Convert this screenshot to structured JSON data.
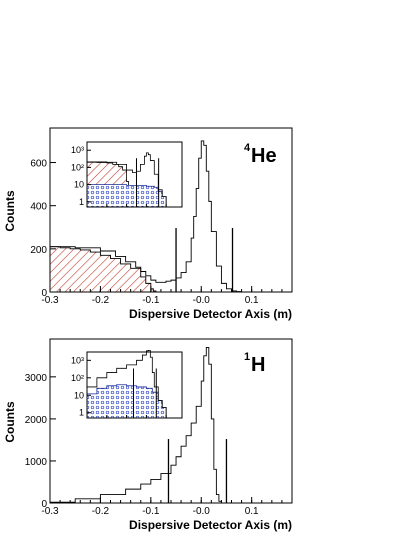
{
  "chart_data": [
    {
      "type": "histogram",
      "xlabel": "Dispersive Detector Axis (m)",
      "ylabel": "Counts",
      "nucleus_mass": "4",
      "nucleus_symbol": "He",
      "xlim": [
        -0.3,
        0.18
      ],
      "ylim": [
        0,
        760
      ],
      "xticks": [
        -0.3,
        -0.2,
        -0.1,
        -0.0,
        0.1
      ],
      "xtick_labels": [
        "-0.3",
        "-0.2",
        "-0.1",
        "-0.0",
        "0.1"
      ],
      "yticks": [
        0,
        200,
        400,
        600
      ],
      "cut_lines": [
        -0.05,
        0.062
      ],
      "series": [
        {
          "fill": "red-hatch",
          "x": [
            -0.3,
            -0.28,
            -0.26,
            -0.24,
            -0.22,
            -0.2,
            -0.18,
            -0.16,
            -0.14,
            -0.12,
            -0.11,
            -0.1,
            -0.095,
            -0.09
          ],
          "y": [
            210,
            205,
            200,
            195,
            185,
            170,
            155,
            130,
            110,
            70,
            40,
            15,
            5,
            0
          ]
        },
        {
          "fill": "none",
          "x": [
            -0.3,
            -0.25,
            -0.2,
            -0.17,
            -0.15,
            -0.13,
            -0.12,
            -0.11,
            -0.1,
            -0.09,
            -0.08,
            -0.07,
            -0.06,
            -0.05,
            -0.04,
            -0.03,
            -0.02,
            -0.015,
            -0.01,
            -0.005,
            0.0,
            0.005,
            0.01,
            0.015,
            0.02,
            0.03,
            0.04,
            0.05,
            0.06,
            0.07,
            0.08
          ],
          "y": [
            210,
            205,
            190,
            165,
            140,
            115,
            95,
            75,
            55,
            45,
            45,
            50,
            55,
            65,
            90,
            140,
            250,
            350,
            480,
            620,
            700,
            680,
            560,
            420,
            280,
            120,
            40,
            15,
            5,
            2,
            0
          ]
        }
      ],
      "inset": {
        "yscale": "log",
        "yticks": [
          1,
          10,
          100,
          1000
        ],
        "ytick_labels": [
          "1",
          "10",
          "10²",
          "10³"
        ],
        "series": [
          {
            "fill": "red-hatch",
            "x": [
              -0.3,
              -0.25,
              -0.2,
              -0.17,
              -0.14,
              -0.12,
              -0.1,
              -0.09,
              -0.08
            ],
            "y": [
              200,
              195,
              180,
              150,
              110,
              70,
              15,
              3,
              1
            ]
          },
          {
            "fill": "blue-hatch",
            "x": [
              -0.3,
              -0.2,
              -0.1,
              -0.05,
              0.0,
              0.04,
              0.06,
              0.08,
              0.1
            ],
            "y": [
              10,
              10,
              9,
              9,
              8,
              7,
              4,
              2,
              1
            ]
          },
          {
            "fill": "none",
            "x": [
              -0.3,
              -0.2,
              -0.15,
              -0.1,
              -0.07,
              -0.05,
              -0.03,
              -0.01,
              0.0,
              0.01,
              0.02,
              0.04,
              0.06,
              0.08,
              0.1
            ],
            "y": [
              210,
              200,
              150,
              70,
              50,
              60,
              150,
              450,
              700,
              550,
              250,
              40,
              5,
              2,
              1
            ]
          }
        ]
      }
    },
    {
      "type": "histogram",
      "xlabel": "Dispersive Detector Axis (m)",
      "ylabel": "Counts",
      "nucleus_mass": "1",
      "nucleus_symbol": "H",
      "xlim": [
        -0.3,
        0.18
      ],
      "ylim": [
        0,
        3900
      ],
      "xticks": [
        -0.3,
        -0.2,
        -0.1,
        -0.0,
        0.1
      ],
      "xtick_labels": [
        "-0.3",
        "-0.2",
        "-0.1",
        "-0.0",
        "0.1"
      ],
      "yticks": [
        0,
        1000,
        2000,
        3000
      ],
      "cut_lines": [
        -0.065,
        0.05
      ],
      "series": [
        {
          "fill": "none",
          "x": [
            -0.3,
            -0.25,
            -0.2,
            -0.15,
            -0.12,
            -0.1,
            -0.08,
            -0.06,
            -0.05,
            -0.04,
            -0.03,
            -0.02,
            -0.01,
            0.0,
            0.005,
            0.01,
            0.015,
            0.02,
            0.025,
            0.03,
            0.035,
            0.04
          ],
          "y": [
            20,
            100,
            200,
            330,
            450,
            560,
            700,
            900,
            1100,
            1350,
            1600,
            1900,
            2300,
            2900,
            3500,
            3700,
            3300,
            2000,
            800,
            200,
            40,
            0
          ]
        }
      ],
      "inset": {
        "yscale": "log",
        "yticks": [
          1,
          10,
          100,
          1000
        ],
        "ytick_labels": [
          "1",
          "10",
          "10²",
          "10³"
        ],
        "series": [
          {
            "fill": "blue-hatch",
            "x": [
              -0.3,
              -0.25,
              -0.2,
              -0.15,
              -0.1,
              -0.05,
              0.0,
              0.03,
              0.06,
              0.08,
              0.1
            ],
            "y": [
              12,
              25,
              35,
              40,
              35,
              30,
              25,
              15,
              5,
              2,
              1
            ]
          },
          {
            "fill": "none",
            "x": [
              -0.3,
              -0.25,
              -0.2,
              -0.15,
              -0.1,
              -0.05,
              -0.02,
              0.0,
              0.01,
              0.02,
              0.03,
              0.04,
              0.06,
              0.08,
              0.1
            ],
            "y": [
              30,
              100,
              200,
              350,
              550,
              1000,
              2000,
              3500,
              3700,
              1500,
              200,
              30,
              5,
              2,
              1
            ]
          }
        ]
      }
    }
  ]
}
